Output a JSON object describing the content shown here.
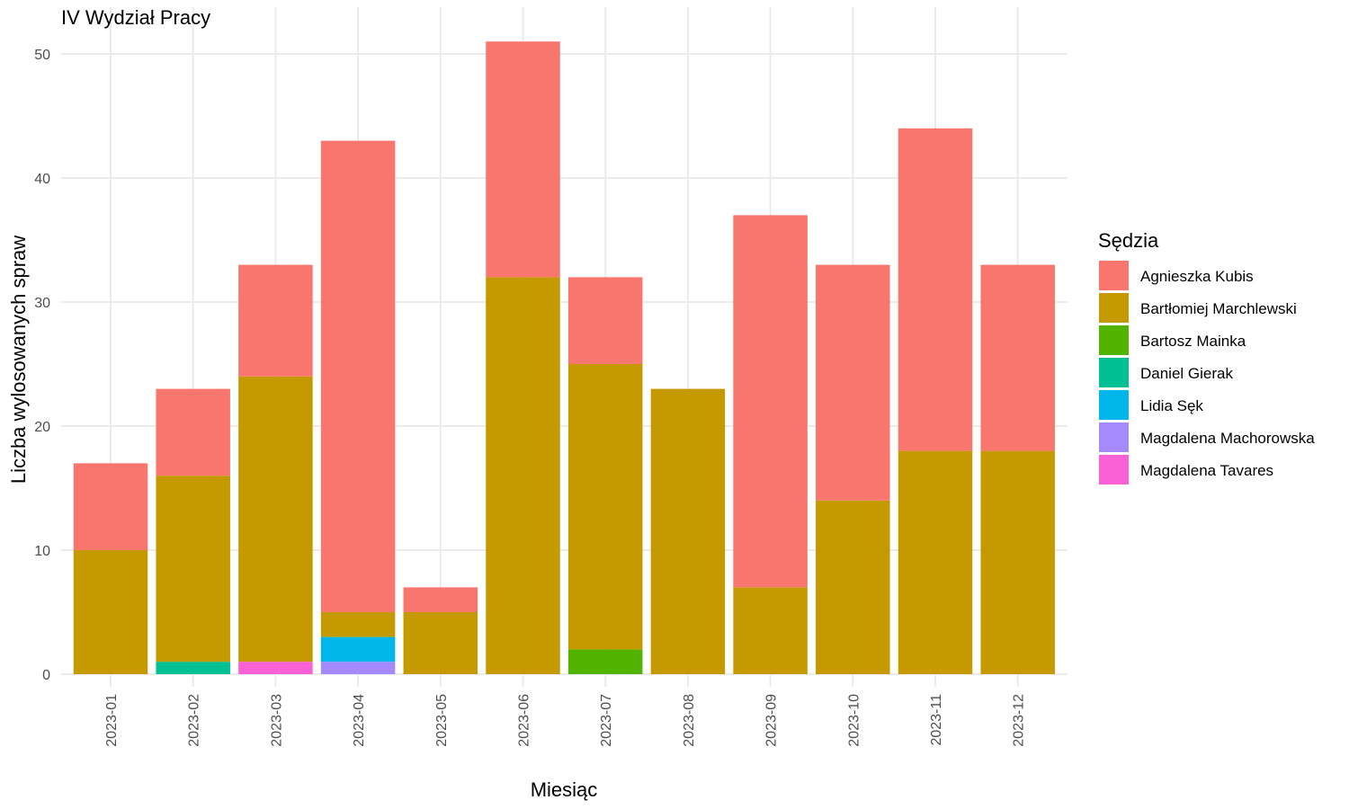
{
  "chart_data": {
    "type": "bar",
    "stacked": true,
    "title": "IV Wydział Pracy",
    "xlabel": "Miesiąc",
    "ylabel": "Liczba wylosowanych spraw",
    "ylim": [
      0,
      52
    ],
    "yticks": [
      0,
      10,
      20,
      30,
      40,
      50
    ],
    "grid": true,
    "legend_title": "Sędzia",
    "legend_position": "right",
    "categories": [
      "2023-01",
      "2023-02",
      "2023-03",
      "2023-04",
      "2023-05",
      "2023-06",
      "2023-07",
      "2023-08",
      "2023-09",
      "2023-10",
      "2023-11",
      "2023-12"
    ],
    "series": [
      {
        "name": "Agnieszka Kubis",
        "color": "#F8766D",
        "values": [
          7,
          7,
          9,
          38,
          2,
          19,
          7,
          0,
          30,
          19,
          26,
          15
        ]
      },
      {
        "name": "Bartłomiej Marchlewski",
        "color": "#C49A00",
        "values": [
          10,
          15,
          23,
          2,
          5,
          32,
          23,
          23,
          7,
          14,
          18,
          18
        ]
      },
      {
        "name": "Bartosz Mainka",
        "color": "#53B400",
        "values": [
          0,
          0,
          0,
          0,
          0,
          0,
          2,
          0,
          0,
          0,
          0,
          0
        ]
      },
      {
        "name": "Daniel Gierak",
        "color": "#00C094",
        "values": [
          0,
          1,
          0,
          0,
          0,
          0,
          0,
          0,
          0,
          0,
          0,
          0
        ]
      },
      {
        "name": "Lidia Sęk",
        "color": "#00B6EB",
        "values": [
          0,
          0,
          0,
          2,
          0,
          0,
          0,
          0,
          0,
          0,
          0,
          0
        ]
      },
      {
        "name": "Magdalena Machorowska",
        "color": "#A58AFF",
        "values": [
          0,
          0,
          0,
          1,
          0,
          0,
          0,
          0,
          0,
          0,
          0,
          0
        ]
      },
      {
        "name": "Magdalena Tavares",
        "color": "#FB61D7",
        "values": [
          0,
          0,
          1,
          0,
          0,
          0,
          0,
          0,
          0,
          0,
          0,
          0
        ]
      }
    ]
  }
}
